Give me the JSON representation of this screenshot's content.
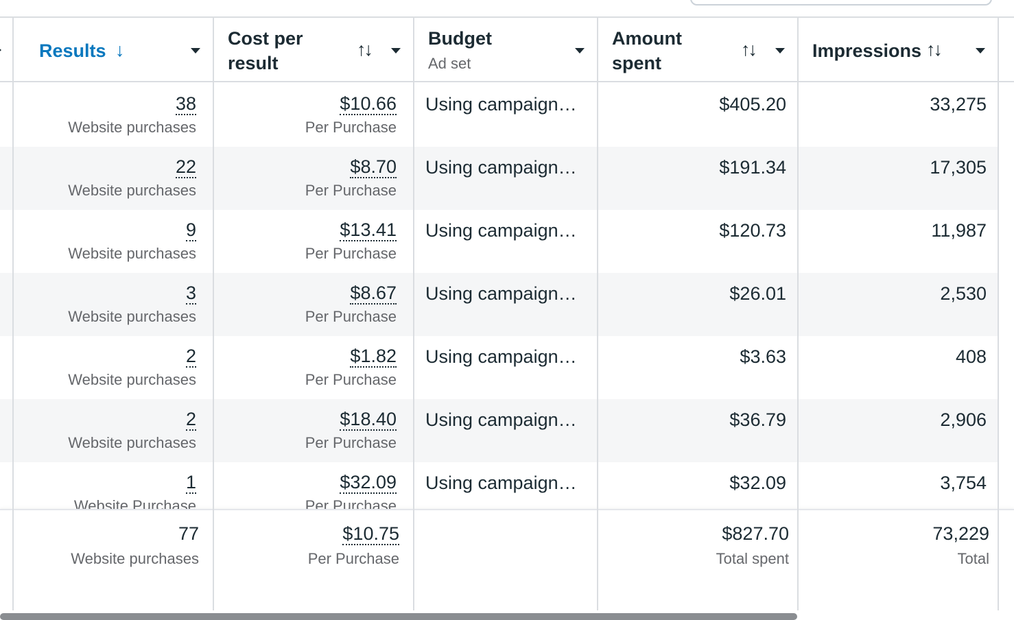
{
  "header": {
    "columns": [
      {
        "label": "Results"
      },
      {
        "label_line1": "Cost per",
        "label_line2": "result"
      },
      {
        "label": "Budget",
        "sub": "Ad set"
      },
      {
        "label_line1": "Amount",
        "label_line2": "spent"
      },
      {
        "label": "Impressions"
      }
    ],
    "sort_down_icon": "↓",
    "sort_both_icon": "↑↓"
  },
  "rows": [
    {
      "results": "38",
      "results_sub": "Website purchases",
      "cpr": "$10.66",
      "cpr_sub": "Per Purchase",
      "budget": "Using campaign…",
      "spent": "$405.20",
      "impressions": "33,275"
    },
    {
      "results": "22",
      "results_sub": "Website purchases",
      "cpr": "$8.70",
      "cpr_sub": "Per Purchase",
      "budget": "Using campaign…",
      "spent": "$191.34",
      "impressions": "17,305"
    },
    {
      "results": "9",
      "results_sub": "Website purchases",
      "cpr": "$13.41",
      "cpr_sub": "Per Purchase",
      "budget": "Using campaign…",
      "spent": "$120.73",
      "impressions": "11,987"
    },
    {
      "results": "3",
      "results_sub": "Website purchases",
      "cpr": "$8.67",
      "cpr_sub": "Per Purchase",
      "budget": "Using campaign…",
      "spent": "$26.01",
      "impressions": "2,530"
    },
    {
      "results": "2",
      "results_sub": "Website purchases",
      "cpr": "$1.82",
      "cpr_sub": "Per Purchase",
      "budget": "Using campaign…",
      "spent": "$3.63",
      "impressions": "408"
    },
    {
      "results": "2",
      "results_sub": "Website purchases",
      "cpr": "$18.40",
      "cpr_sub": "Per Purchase",
      "budget": "Using campaign…",
      "spent": "$36.79",
      "impressions": "2,906"
    },
    {
      "results": "1",
      "results_sub": "Website Purchase",
      "cpr": "$32.09",
      "cpr_sub": "Per Purchase",
      "budget": "Using campaign…",
      "spent": "$32.09",
      "impressions": "3,754"
    }
  ],
  "totals": {
    "results": "77",
    "results_sub": "Website purchases",
    "cpr": "$10.75",
    "cpr_sub": "Per Purchase",
    "spent": "$827.70",
    "spent_sub": "Total spent",
    "impressions": "73,229",
    "impressions_sub": "Total"
  }
}
